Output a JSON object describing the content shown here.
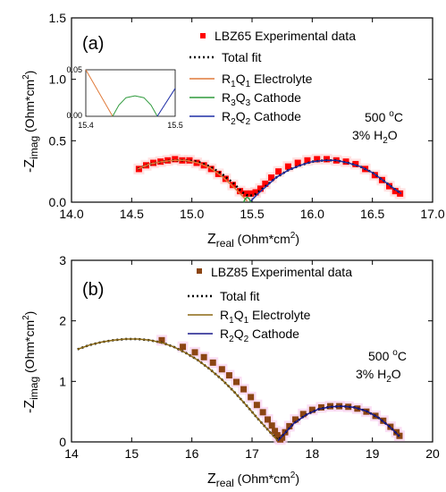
{
  "chart_data": [
    {
      "type": "scatter",
      "panel_label": "(a)",
      "xlabel": "Z",
      "xlabel_sub": "real",
      "xlabel_unit": " (Ohm*cm",
      "xlabel_unit_sup": "2",
      "xlabel_close": ")",
      "ylabel": "-Z",
      "ylabel_sub": "imag",
      "ylabel_unit": " (Ohm*cm",
      "ylabel_unit_sup": "2",
      "ylabel_close": ")",
      "xlim": [
        14.0,
        17.0
      ],
      "ylim": [
        0.0,
        1.5
      ],
      "xticks": [
        "14.0",
        "14.5",
        "15.0",
        "15.5",
        "16.0",
        "16.5",
        "17.0"
      ],
      "yticks": [
        "0.0",
        "0.5",
        "1.0",
        "1.5"
      ],
      "legend_position": "top-right",
      "conditions": {
        "temp": "500 ",
        "temp_sup": "o",
        "temp_unit": "C",
        "water": "3% H",
        "water_sub": "2",
        "water_tail": "O"
      },
      "legend": [
        {
          "text": "LBZ65 Experimental data",
          "kind": "marker",
          "color": "#ff0000"
        },
        {
          "text": "Total fit",
          "kind": "dotted",
          "color": "#000000"
        },
        {
          "text_main": "R",
          "sub1": "1",
          "mid": "Q",
          "sub2": "1",
          "tail": " Electrolyte",
          "kind": "line",
          "color": "#e07a3a"
        },
        {
          "text_main": "R",
          "sub1": "3",
          "mid": "Q",
          "sub2": "3",
          "tail": " Cathode",
          "kind": "line",
          "color": "#2e9a3c"
        },
        {
          "text_main": "R",
          "sub1": "2",
          "mid": "Q",
          "sub2": "2",
          "tail": " Cathode",
          "kind": "line",
          "color": "#1f2fa6"
        }
      ],
      "series": [
        {
          "name": "LBZ65 Experimental data",
          "marker": "square",
          "color": "#ff0000",
          "x": [
            14.56,
            14.62,
            14.68,
            14.74,
            14.8,
            14.86,
            14.92,
            14.98,
            15.04,
            15.1,
            15.16,
            15.22,
            15.28,
            15.34,
            15.4,
            15.45,
            15.49,
            15.53,
            15.57,
            15.61,
            15.66,
            15.72,
            15.8,
            15.88,
            15.96,
            16.04,
            16.12,
            16.2,
            16.28,
            16.36,
            16.44,
            16.52,
            16.58,
            16.64,
            16.69,
            16.73
          ],
          "y": [
            0.27,
            0.3,
            0.32,
            0.33,
            0.34,
            0.35,
            0.34,
            0.34,
            0.32,
            0.3,
            0.27,
            0.23,
            0.19,
            0.14,
            0.09,
            0.07,
            0.07,
            0.08,
            0.11,
            0.15,
            0.2,
            0.25,
            0.29,
            0.32,
            0.34,
            0.35,
            0.35,
            0.34,
            0.33,
            0.31,
            0.27,
            0.22,
            0.18,
            0.13,
            0.09,
            0.07
          ]
        },
        {
          "name": "Total fit",
          "style": "dotted",
          "color": "#000000",
          "x": [
            14.55,
            14.65,
            14.75,
            14.85,
            14.95,
            15.05,
            15.15,
            15.25,
            15.35,
            15.42,
            15.47,
            15.52,
            15.6,
            15.7,
            15.8,
            15.9,
            16.0,
            16.1,
            16.2,
            16.3,
            16.4,
            16.5,
            16.6,
            16.68,
            16.74
          ],
          "y": [
            0.27,
            0.31,
            0.33,
            0.34,
            0.34,
            0.33,
            0.29,
            0.23,
            0.15,
            0.08,
            0.05,
            0.06,
            0.12,
            0.2,
            0.26,
            0.3,
            0.33,
            0.34,
            0.34,
            0.32,
            0.29,
            0.24,
            0.17,
            0.11,
            0.07
          ]
        },
        {
          "name": "R1Q1 Electrolyte",
          "style": "solid",
          "color": "#e07a3a",
          "x": [
            14.55,
            14.65,
            14.75,
            14.85,
            14.95,
            15.05,
            15.15,
            15.25,
            15.35,
            15.42,
            15.46
          ],
          "y": [
            0.27,
            0.31,
            0.33,
            0.34,
            0.34,
            0.32,
            0.28,
            0.21,
            0.12,
            0.05,
            0.01
          ]
        },
        {
          "name": "R3Q3 Cathode",
          "style": "solid",
          "color": "#2e9a3c",
          "x": [
            15.43,
            15.445,
            15.46,
            15.475,
            15.49
          ],
          "y": [
            0.0,
            0.03,
            0.04,
            0.03,
            0.0
          ]
        },
        {
          "name": "R2Q2 Cathode",
          "style": "solid",
          "color": "#1f2fa6",
          "x": [
            15.49,
            15.55,
            15.62,
            15.7,
            15.8,
            15.9,
            16.0,
            16.1,
            16.2,
            16.3,
            16.4,
            16.5,
            16.6,
            16.68,
            16.74
          ],
          "y": [
            0.01,
            0.07,
            0.13,
            0.2,
            0.26,
            0.3,
            0.33,
            0.34,
            0.34,
            0.32,
            0.29,
            0.24,
            0.17,
            0.11,
            0.07
          ]
        }
      ],
      "inset": {
        "xlim": [
          15.4,
          15.5
        ],
        "ylim": [
          0.0,
          0.05
        ],
        "xticks": [
          "15.4",
          "15.5"
        ],
        "yticks": [
          "0.00",
          "0.05"
        ],
        "series": [
          {
            "name": "R1Q1 Electrolyte",
            "color": "#e07a3a",
            "x": [
              15.4,
              15.43
            ],
            "y": [
              0.05,
              0.0
            ]
          },
          {
            "name": "R3Q3 Cathode",
            "color": "#2e9a3c",
            "x": [
              15.43,
              15.437,
              15.445,
              15.455,
              15.465,
              15.473,
              15.48
            ],
            "y": [
              0.0,
              0.012,
              0.02,
              0.022,
              0.02,
              0.012,
              0.0
            ]
          },
          {
            "name": "R2Q2 Cathode",
            "color": "#1f2fa6",
            "x": [
              15.48,
              15.5
            ],
            "y": [
              0.0,
              0.03
            ]
          }
        ]
      }
    },
    {
      "type": "scatter",
      "panel_label": "(b)",
      "xlabel": "Z",
      "xlabel_sub": "real",
      "xlabel_unit": " (Ohm*cm",
      "xlabel_unit_sup": "2",
      "xlabel_close": ")",
      "ylabel": "-Z",
      "ylabel_sub": "imag",
      "ylabel_unit": " (Ohm*cm",
      "ylabel_unit_sup": "2",
      "ylabel_close": ")",
      "xlim": [
        14,
        20
      ],
      "ylim": [
        0,
        3
      ],
      "xticks": [
        "14",
        "15",
        "16",
        "17",
        "18",
        "19",
        "20"
      ],
      "yticks": [
        "0",
        "1",
        "2",
        "3"
      ],
      "legend_position": "top-right",
      "conditions": {
        "temp": "500 ",
        "temp_sup": "o",
        "temp_unit": "C",
        "water": "3% H",
        "water_sub": "2",
        "water_tail": "O"
      },
      "legend": [
        {
          "text": "LBZ85 Experimental data",
          "kind": "marker",
          "color": "#8b4513"
        },
        {
          "text": "Total fit",
          "kind": "dotted",
          "color": "#000000"
        },
        {
          "text_main": "R",
          "sub1": "1",
          "mid": "Q",
          "sub2": "1",
          "tail": " Electrolyte",
          "kind": "line",
          "color": "#8b6914"
        },
        {
          "text_main": "R",
          "sub1": "2",
          "mid": "Q",
          "sub2": "2",
          "tail": " Cathode",
          "kind": "line",
          "color": "#1a1a8c"
        }
      ],
      "series": [
        {
          "name": "LBZ85 Experimental data",
          "marker": "square",
          "color": "#8b4513",
          "x": [
            15.5,
            15.85,
            16.05,
            16.2,
            16.35,
            16.5,
            16.62,
            16.74,
            16.86,
            16.98,
            17.08,
            17.18,
            17.26,
            17.33,
            17.38,
            17.42,
            17.45,
            17.47,
            17.5,
            17.55,
            17.62,
            17.72,
            17.85,
            18.0,
            18.15,
            18.3,
            18.45,
            18.6,
            18.75,
            18.9,
            19.05,
            19.18,
            19.3,
            19.4,
            19.45
          ],
          "y": [
            1.68,
            1.57,
            1.48,
            1.4,
            1.31,
            1.2,
            1.1,
            0.99,
            0.87,
            0.74,
            0.61,
            0.49,
            0.37,
            0.27,
            0.18,
            0.11,
            0.06,
            0.04,
            0.07,
            0.16,
            0.26,
            0.37,
            0.46,
            0.53,
            0.57,
            0.59,
            0.59,
            0.58,
            0.55,
            0.5,
            0.43,
            0.35,
            0.25,
            0.16,
            0.1
          ]
        },
        {
          "name": "Total fit",
          "style": "dotted",
          "color": "#000000",
          "x": [
            14.1,
            14.3,
            14.5,
            14.7,
            14.9,
            15.1,
            15.3,
            15.5,
            15.7,
            15.9,
            16.1,
            16.3,
            16.5,
            16.7,
            16.9,
            17.1,
            17.3,
            17.43,
            17.55,
            17.7,
            17.9,
            18.1,
            18.3,
            18.5,
            18.7,
            18.9,
            19.1,
            19.3,
            19.45
          ],
          "y": [
            1.53,
            1.6,
            1.65,
            1.68,
            1.7,
            1.7,
            1.68,
            1.64,
            1.57,
            1.47,
            1.35,
            1.2,
            1.03,
            0.83,
            0.61,
            0.38,
            0.16,
            0.03,
            0.15,
            0.31,
            0.45,
            0.54,
            0.58,
            0.59,
            0.57,
            0.51,
            0.4,
            0.24,
            0.09
          ]
        },
        {
          "name": "R1Q1 Electrolyte",
          "style": "solid",
          "color": "#8b6914",
          "x": [
            14.1,
            14.3,
            14.5,
            14.7,
            14.9,
            15.1,
            15.3,
            15.5,
            15.7,
            15.9,
            16.1,
            16.3,
            16.5,
            16.7,
            16.9,
            17.1,
            17.3,
            17.43
          ],
          "y": [
            1.53,
            1.6,
            1.65,
            1.68,
            1.7,
            1.7,
            1.68,
            1.64,
            1.57,
            1.47,
            1.35,
            1.2,
            1.03,
            0.83,
            0.61,
            0.38,
            0.16,
            0.02
          ]
        },
        {
          "name": "R2Q2 Cathode",
          "style": "solid",
          "color": "#1a1a8c",
          "x": [
            17.43,
            17.55,
            17.7,
            17.9,
            18.1,
            18.3,
            18.5,
            18.7,
            18.9,
            19.1,
            19.3,
            19.45
          ],
          "y": [
            0.02,
            0.15,
            0.31,
            0.45,
            0.54,
            0.58,
            0.59,
            0.57,
            0.51,
            0.4,
            0.24,
            0.09
          ]
        }
      ]
    }
  ]
}
